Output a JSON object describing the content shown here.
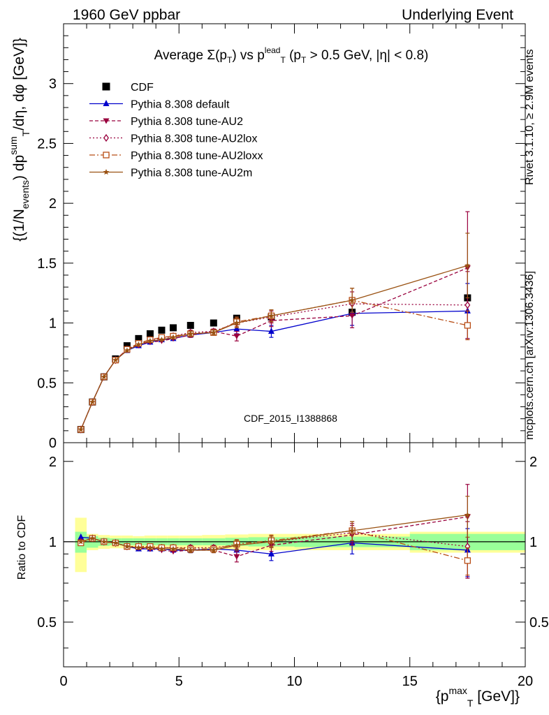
{
  "header": {
    "left": "1960 GeV ppbar",
    "right": "Underlying Event",
    "title": "Average Σ(p_T) vs p_T^lead (p_T > 0.5 GeV, |η| < 0.8)",
    "analysis": "CDF_2015_I1388868",
    "side_top": "Rivet 3.1.10, ≥ 2.9M events",
    "side_bottom": "mcplots.cern.ch [arXiv:1306.3436]"
  },
  "chart_data": [
    {
      "type": "scatter",
      "panel": "main",
      "ylabel": "{(1/N_events) dp_T^sum/dη, dφ [GeV]}",
      "ylim": [
        0,
        3.5
      ],
      "xlim": [
        0,
        20
      ],
      "yticks": [
        "0",
        "0.5",
        "1",
        "1.5",
        "2",
        "2.5",
        "3"
      ],
      "legend_position": "top-left",
      "x": [
        0.75,
        1.25,
        1.75,
        2.25,
        2.75,
        3.25,
        3.75,
        4.25,
        4.75,
        5.5,
        6.5,
        7.5,
        9.0,
        12.5,
        17.5
      ],
      "series": [
        {
          "name": "CDF",
          "color": "#000000",
          "marker": "square",
          "style": "none",
          "values": [
            0.11,
            0.34,
            0.55,
            0.7,
            0.81,
            0.87,
            0.91,
            0.94,
            0.96,
            0.98,
            1.0,
            1.04,
            1.05,
            1.09,
            1.21
          ]
        },
        {
          "name": "Pythia 8.308 default",
          "color": "#0000cc",
          "marker": "triangle-up",
          "style": "solid",
          "values": [
            0.11,
            0.34,
            0.55,
            0.69,
            0.77,
            0.81,
            0.84,
            0.86,
            0.87,
            0.9,
            0.92,
            0.95,
            0.93,
            1.08,
            1.1
          ],
          "errors": [
            0,
            0,
            0,
            0,
            0,
            0,
            0,
            0,
            0,
            0.02,
            0.02,
            0.04,
            0.05,
            0.1,
            0.23
          ]
        },
        {
          "name": "Pythia 8.308 tune-AU2",
          "color": "#99003d",
          "marker": "triangle-down",
          "style": "dashed",
          "values": [
            0.11,
            0.34,
            0.55,
            0.69,
            0.78,
            0.82,
            0.84,
            0.85,
            0.87,
            0.9,
            0.93,
            0.89,
            1.02,
            1.06,
            1.46
          ],
          "errors": [
            0,
            0,
            0,
            0,
            0,
            0,
            0,
            0,
            0,
            0.02,
            0.02,
            0.04,
            0.05,
            0.1,
            0.47
          ]
        },
        {
          "name": "Pythia 8.308 tune-AU2lox",
          "color": "#99003d",
          "marker": "diamond-open",
          "style": "dotted",
          "values": [
            0.11,
            0.34,
            0.55,
            0.69,
            0.78,
            0.82,
            0.86,
            0.87,
            0.89,
            0.92,
            0.93,
            1.0,
            1.05,
            1.16,
            1.15
          ],
          "errors": [
            0,
            0,
            0,
            0,
            0,
            0,
            0,
            0,
            0,
            0.02,
            0.02,
            0.04,
            0.05,
            0.1,
            0.28
          ]
        },
        {
          "name": "Pythia 8.308 tune-AU2loxx",
          "color": "#b84d15",
          "marker": "square-open",
          "style": "dashdot",
          "values": [
            0.11,
            0.34,
            0.55,
            0.69,
            0.78,
            0.83,
            0.86,
            0.88,
            0.89,
            0.91,
            0.92,
            1.01,
            1.06,
            1.19,
            0.98
          ],
          "errors": [
            0,
            0,
            0,
            0,
            0,
            0,
            0,
            0,
            0,
            0.02,
            0.02,
            0.04,
            0.05,
            0.1,
            0.12
          ]
        },
        {
          "name": "Pythia 8.308 tune-AU2m",
          "color": "#9a5213",
          "marker": "star",
          "style": "solid",
          "values": [
            0.11,
            0.34,
            0.55,
            0.69,
            0.77,
            0.82,
            0.85,
            0.86,
            0.88,
            0.91,
            0.92,
            1.0,
            1.06,
            1.19,
            1.48
          ],
          "errors": [
            0,
            0,
            0,
            0,
            0,
            0,
            0,
            0,
            0,
            0.02,
            0.02,
            0.04,
            0.05,
            0.1,
            0.27
          ]
        }
      ]
    },
    {
      "type": "scatter",
      "panel": "ratio",
      "ylabel": "Ratio to CDF",
      "xlabel": "{p_T^max [GeV]}",
      "ylim": [
        0.34,
        2.35
      ],
      "xlim": [
        0,
        20
      ],
      "xticks": [
        "0",
        "5",
        "10",
        "15",
        "20"
      ],
      "yticks": [
        "0.5",
        "1",
        "2"
      ],
      "log_y": true,
      "bands": {
        "x_edges": [
          0.5,
          1.0,
          1.5,
          2.0,
          2.5,
          3.0,
          3.5,
          4.0,
          4.5,
          5.0,
          6.0,
          7.0,
          8.0,
          10.0,
          15.0,
          20.0
        ],
        "stat_half": [
          0.09,
          0.05,
          0.035,
          0.03,
          0.03,
          0.03,
          0.03,
          0.03,
          0.03,
          0.03,
          0.03,
          0.035,
          0.04,
          0.045,
          0.07
        ],
        "syst_half": [
          0.23,
          0.07,
          0.06,
          0.055,
          0.055,
          0.05,
          0.055,
          0.055,
          0.055,
          0.055,
          0.06,
          0.065,
          0.07,
          0.07,
          0.09
        ],
        "stat_color": "#99ff99",
        "syst_color": "#ffff99"
      },
      "series": [
        {
          "name": "Pythia 8.308 default",
          "color": "#0000cc",
          "marker": "triangle-up",
          "style": "solid",
          "values": [
            1.04,
            1.03,
            1.0,
            0.99,
            0.96,
            0.94,
            0.94,
            0.94,
            0.93,
            0.93,
            0.94,
            0.93,
            0.9,
            0.99,
            0.93
          ],
          "errors": [
            0,
            0,
            0,
            0,
            0,
            0,
            0,
            0,
            0,
            0.02,
            0.02,
            0.04,
            0.05,
            0.09,
            0.19
          ]
        },
        {
          "name": "Pythia 8.308 tune-AU2",
          "color": "#99003d",
          "marker": "triangle-down",
          "style": "dashed",
          "values": [
            1.0,
            1.03,
            1.0,
            0.99,
            0.96,
            0.95,
            0.94,
            0.93,
            0.92,
            0.93,
            0.93,
            0.88,
            0.97,
            1.06,
            1.24
          ],
          "errors": [
            0,
            0,
            0,
            0,
            0,
            0,
            0,
            0,
            0,
            0.02,
            0.02,
            0.04,
            0.05,
            0.09,
            0.4
          ]
        },
        {
          "name": "Pythia 8.308 tune-AU2lox",
          "color": "#99003d",
          "marker": "diamond-open",
          "style": "dotted",
          "values": [
            1.0,
            1.03,
            1.0,
            0.99,
            0.96,
            0.96,
            0.95,
            0.95,
            0.95,
            0.95,
            0.95,
            0.97,
            1.0,
            1.08,
            0.96
          ],
          "errors": [
            0,
            0,
            0,
            0,
            0,
            0,
            0,
            0,
            0,
            0.02,
            0.02,
            0.04,
            0.05,
            0.09,
            0.23
          ]
        },
        {
          "name": "Pythia 8.308 tune-AU2loxx",
          "color": "#b84d15",
          "marker": "square-open",
          "style": "dashdot",
          "values": [
            0.99,
            1.03,
            1.0,
            0.99,
            0.96,
            0.96,
            0.96,
            0.95,
            0.95,
            0.94,
            0.94,
            0.98,
            1.01,
            1.1,
            0.85
          ],
          "errors": [
            0,
            0,
            0,
            0,
            0,
            0,
            0,
            0,
            0,
            0.02,
            0.02,
            0.04,
            0.05,
            0.09,
            0.1
          ]
        },
        {
          "name": "Pythia 8.308 tune-AU2m",
          "color": "#9a5213",
          "marker": "star",
          "style": "solid",
          "values": [
            1.0,
            1.03,
            1.0,
            0.99,
            0.96,
            0.95,
            0.95,
            0.94,
            0.94,
            0.93,
            0.93,
            0.97,
            1.0,
            1.1,
            1.26
          ],
          "errors": [
            0,
            0,
            0,
            0,
            0,
            0,
            0,
            0,
            0,
            0.02,
            0.02,
            0.04,
            0.05,
            0.09,
            0.22
          ]
        }
      ]
    }
  ]
}
